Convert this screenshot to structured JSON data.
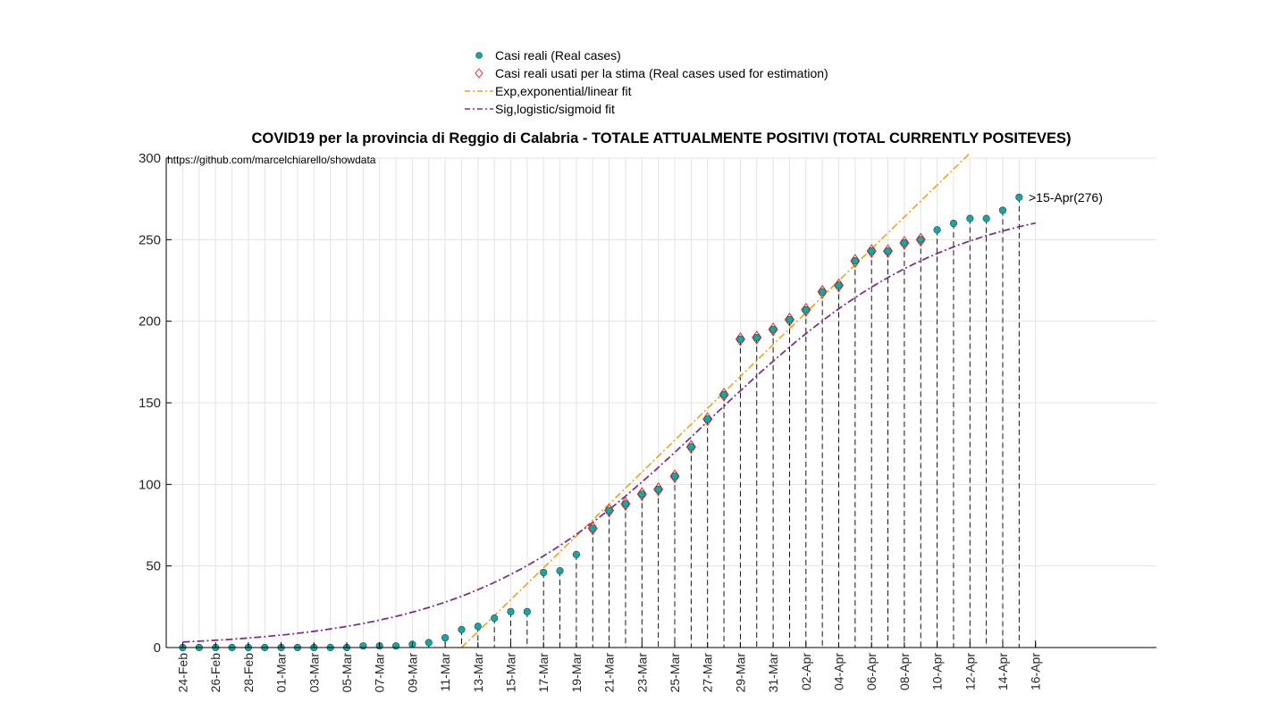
{
  "chart_data": {
    "type": "scatter",
    "title": "COVID19 per la provincia di Reggio di Calabria - TOTALE ATTUALMENTE POSITIVI (TOTAL CURRENTLY POSITEVES)",
    "annotation": "https://github.com/marcelchiarello/showdata",
    "last_point_label": ">15-Apr(276)",
    "xlabel": "",
    "ylabel": "",
    "ylim": [
      0,
      300
    ],
    "yticks": [
      0,
      50,
      100,
      150,
      200,
      250,
      300
    ],
    "x_tick_labels": [
      "24-Feb",
      "26-Feb",
      "28-Feb",
      "01-Mar",
      "03-Mar",
      "05-Mar",
      "07-Mar",
      "09-Mar",
      "11-Mar",
      "13-Mar",
      "15-Mar",
      "17-Mar",
      "19-Mar",
      "21-Mar",
      "23-Mar",
      "25-Mar",
      "27-Mar",
      "29-Mar",
      "31-Mar",
      "02-Apr",
      "04-Apr",
      "06-Apr",
      "08-Apr",
      "10-Apr",
      "12-Apr",
      "14-Apr",
      "16-Apr"
    ],
    "grid": true,
    "legend_position": "top-center",
    "legend": [
      {
        "label": "Casi reali (Real cases)",
        "marker": "filled-circle"
      },
      {
        "label": "Casi reali usati per la stima (Real cases used for estimation)",
        "marker": "diamond"
      },
      {
        "label": "Exp,exponential/linear fit",
        "marker": "dash-dot-line"
      },
      {
        "label": "Sig,logistic/sigmoid fit",
        "marker": "dash-dot-line"
      }
    ],
    "colors": {
      "real_cases": "#17a5a5",
      "estimation_marker": "#e8322a",
      "exp_fit": "#eda31d",
      "sig_fit": "#7e2f8e",
      "grid": "#e3e3e3",
      "stem": "#000000"
    },
    "series": [
      {
        "name": "Casi reali (Real cases)",
        "x": [
          "24-Feb",
          "25-Feb",
          "26-Feb",
          "27-Feb",
          "28-Feb",
          "29-Feb",
          "01-Mar",
          "02-Mar",
          "03-Mar",
          "04-Mar",
          "05-Mar",
          "06-Mar",
          "07-Mar",
          "08-Mar",
          "09-Mar",
          "10-Mar",
          "11-Mar",
          "12-Mar",
          "13-Mar",
          "14-Mar",
          "15-Mar",
          "16-Mar",
          "17-Mar",
          "18-Mar",
          "19-Mar",
          "20-Mar",
          "21-Mar",
          "22-Mar",
          "23-Mar",
          "24-Mar",
          "25-Mar",
          "26-Mar",
          "27-Mar",
          "28-Mar",
          "29-Mar",
          "30-Mar",
          "31-Mar",
          "01-Apr",
          "02-Apr",
          "03-Apr",
          "04-Apr",
          "05-Apr",
          "06-Apr",
          "07-Apr",
          "08-Apr",
          "09-Apr",
          "10-Apr",
          "11-Apr",
          "12-Apr",
          "13-Apr",
          "14-Apr",
          "15-Apr"
        ],
        "values": [
          0,
          0,
          0,
          0,
          0,
          0,
          0,
          0,
          0,
          0,
          0,
          1,
          1,
          1,
          2,
          3,
          6,
          11,
          13,
          18,
          22,
          22,
          46,
          47,
          57,
          73,
          84,
          88,
          94,
          97,
          105,
          123,
          140,
          155,
          189,
          190,
          195,
          201,
          207,
          218,
          222,
          237,
          243,
          243,
          248,
          250,
          256,
          260,
          263,
          263,
          268,
          276
        ]
      },
      {
        "name": "Casi reali usati per la stima (Real cases used for estimation)",
        "x": [
          "20-Mar",
          "21-Mar",
          "22-Mar",
          "23-Mar",
          "24-Mar",
          "25-Mar",
          "26-Mar",
          "27-Mar",
          "28-Mar",
          "29-Mar",
          "30-Mar",
          "31-Mar",
          "01-Apr",
          "02-Apr",
          "03-Apr",
          "04-Apr",
          "05-Apr",
          "06-Apr",
          "07-Apr",
          "08-Apr",
          "09-Apr"
        ],
        "values": [
          73,
          84,
          88,
          94,
          97,
          105,
          123,
          140,
          155,
          189,
          190,
          195,
          201,
          207,
          218,
          222,
          237,
          243,
          243,
          248,
          250
        ]
      },
      {
        "name": "Exp,exponential/linear fit",
        "kind": "linear",
        "x": [
          "12-Mar",
          "12-Apr"
        ],
        "values": [
          0,
          303
        ]
      },
      {
        "name": "Sig,logistic/sigmoid fit",
        "kind": "logistic",
        "x_range": [
          "24-Feb",
          "16-Apr"
        ],
        "params": {
          "K": 277,
          "midpoint": "27-Mar",
          "rate": 0.137
        }
      }
    ]
  }
}
